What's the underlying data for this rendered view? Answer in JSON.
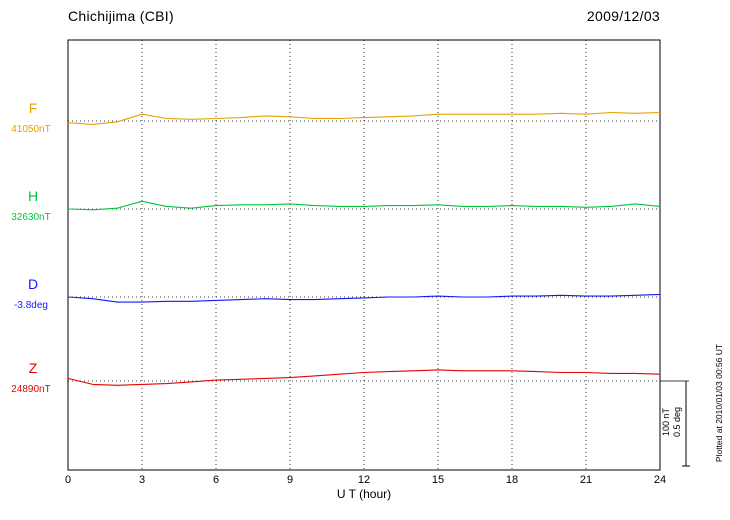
{
  "header": {
    "station": "Chichijima (CBI)",
    "date": "2009/12/03"
  },
  "footer": {
    "xlabel": "U T (hour)"
  },
  "side": {
    "scale_label_nt": "100 nT",
    "scale_label_deg": "0.5 deg",
    "plotted_at": "Plotted at 2010/01/03 00:56 UT"
  },
  "chart_data": {
    "type": "line",
    "title": "Chichijima (CBI) magnetogram",
    "subtitle": "2009/12/03",
    "xlabel": "U T (hour)",
    "xlim": [
      0,
      24
    ],
    "x_ticks": [
      0,
      3,
      6,
      9,
      12,
      15,
      18,
      21,
      24
    ],
    "grid": "vertical dotted lines every 3 hours; dotted horizontal baseline per trace",
    "legend_position": "left margin, one colored label per trace",
    "scale": {
      "nT_per_div": 100,
      "deg_per_div": 0.5
    },
    "series": [
      {
        "name": "F",
        "unit": "nT",
        "color": "#e6a000",
        "baseline_value": 41050,
        "baseline_label": "41050nT",
        "x_hours": [
          0,
          1,
          2,
          3,
          4,
          5,
          6,
          7,
          8,
          9,
          10,
          11,
          12,
          13,
          14,
          15,
          16,
          17,
          18,
          19,
          20,
          21,
          22,
          23,
          24
        ],
        "offsets": [
          -2,
          -4,
          -1,
          8,
          3,
          2,
          3,
          4,
          6,
          5,
          3,
          3,
          4,
          5,
          6,
          8,
          8,
          8,
          8,
          8,
          9,
          8,
          10,
          9,
          10
        ]
      },
      {
        "name": "H",
        "unit": "nT",
        "color": "#00c43c",
        "baseline_value": 32630,
        "baseline_label": "32630nT",
        "x_hours": [
          0,
          1,
          2,
          3,
          4,
          5,
          6,
          7,
          8,
          9,
          10,
          11,
          12,
          13,
          14,
          15,
          16,
          17,
          18,
          19,
          20,
          21,
          22,
          23,
          24
        ],
        "offsets": [
          0,
          -1,
          1,
          9,
          3,
          1,
          4,
          5,
          5,
          6,
          4,
          3,
          3,
          4,
          4,
          5,
          3,
          3,
          4,
          3,
          3,
          2,
          3,
          6,
          3
        ]
      },
      {
        "name": "D",
        "unit": "deg",
        "color": "#1414ff",
        "baseline_value": -3.8,
        "baseline_label": "-3.8deg",
        "x_hours": [
          0,
          1,
          2,
          3,
          4,
          5,
          6,
          7,
          8,
          9,
          10,
          11,
          12,
          13,
          14,
          15,
          16,
          17,
          18,
          19,
          20,
          21,
          22,
          23,
          24
        ],
        "offsets": [
          0,
          -0.01,
          -0.03,
          -0.03,
          -0.025,
          -0.025,
          -0.02,
          -0.015,
          -0.01,
          -0.015,
          -0.015,
          -0.01,
          -0.005,
          0,
          0,
          0.005,
          0,
          0,
          0.005,
          0.005,
          0.01,
          0.005,
          0.005,
          0.01,
          0.015
        ]
      },
      {
        "name": "Z",
        "unit": "nT",
        "color": "#e60000",
        "baseline_value": 24890,
        "baseline_label": "24890nT",
        "x_hours": [
          0,
          1,
          2,
          3,
          4,
          5,
          6,
          7,
          8,
          9,
          10,
          11,
          12,
          13,
          14,
          15,
          16,
          17,
          18,
          19,
          20,
          21,
          22,
          23,
          24
        ],
        "offsets": [
          3,
          -4,
          -5,
          -4,
          -3,
          -1,
          1,
          2,
          3,
          4,
          6,
          8,
          10,
          11,
          12,
          13,
          12,
          12,
          12,
          11,
          10,
          10,
          9,
          9,
          8
        ]
      }
    ]
  }
}
